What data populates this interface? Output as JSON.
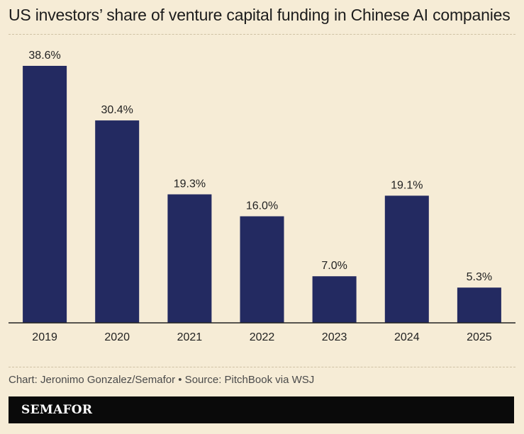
{
  "header": {
    "title": "US investors’ share of venture capital funding in Chinese AI companies"
  },
  "chart_data": {
    "type": "bar",
    "categories": [
      "2019",
      "2020",
      "2021",
      "2022",
      "2023",
      "2024",
      "2025"
    ],
    "values": [
      38.6,
      30.4,
      19.3,
      16.0,
      7.0,
      19.1,
      5.3
    ],
    "value_labels": [
      "38.6%",
      "30.4%",
      "19.3%",
      "16.0%",
      "7.0%",
      "19.1%",
      "5.3%"
    ],
    "title": "US investors’ share of venture capital funding in Chinese AI companies",
    "xlabel": "",
    "ylabel": "",
    "ylim": [
      0,
      38.6
    ],
    "grid": false,
    "legend": "none",
    "colors": {
      "bar": "#232a61",
      "background": "#f6ecd6",
      "axis": "#222222"
    }
  },
  "footer": {
    "credit": "Chart: Jeronimo Gonzalez/Semafor • Source: PitchBook via WSJ",
    "brand": "SEMAFOR"
  }
}
